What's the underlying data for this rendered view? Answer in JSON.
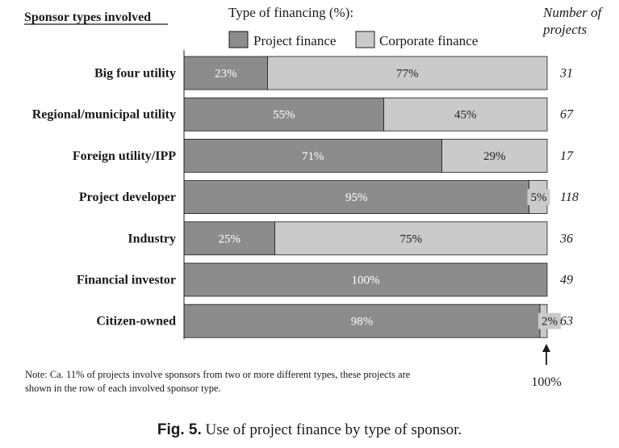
{
  "header": {
    "left_title": "Sponsor types involved",
    "center_title": "Type of financing (%):",
    "right_title_line1": "Number of",
    "right_title_line2": "projects"
  },
  "colors": {
    "project_finance": "#8c8c8c",
    "corporate_finance": "#cacaca"
  },
  "end_marker_label": "100%",
  "note": {
    "line1": "Note: Ca. 11% of  projects involve sponsors from two or more different types, these projects are",
    "line2": "shown in the row of each involved sponsor type."
  },
  "caption": {
    "label": "Fig. 5.",
    "text": "Use of project finance by type of sponsor."
  },
  "chart_data": {
    "type": "bar",
    "orientation": "horizontal",
    "stacked": true,
    "categories": [
      "Big four utility",
      "Regional/municipal utility",
      "Foreign utility/IPP",
      "Project developer",
      "Industry",
      "Financial investor",
      "Citizen-owned"
    ],
    "series": [
      {
        "name": "Project finance",
        "values": [
          23,
          55,
          71,
          95,
          25,
          100,
          98
        ]
      },
      {
        "name": "Corporate finance",
        "values": [
          77,
          45,
          29,
          5,
          75,
          0,
          2
        ]
      }
    ],
    "value_labels": [
      [
        "23%",
        "55%",
        "71%",
        "95%",
        "25%",
        "100%",
        "98%"
      ],
      [
        "77%",
        "45%",
        "29%",
        "5%",
        "75%",
        "",
        "2%"
      ]
    ],
    "project_counts": [
      "31",
      "67",
      "17",
      "118",
      "36",
      "49",
      "63"
    ],
    "xlim": [
      0,
      100
    ],
    "legend_position": "top"
  }
}
